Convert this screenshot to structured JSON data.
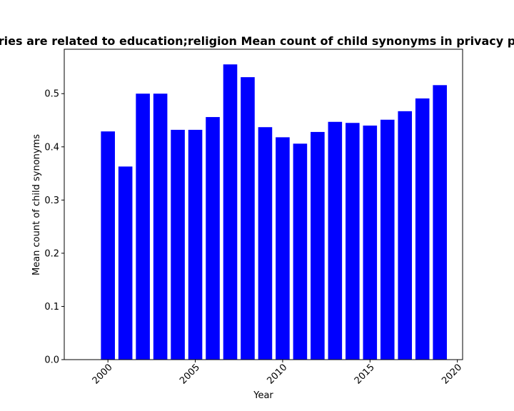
{
  "chart_data": {
    "type": "bar",
    "title": "ries are related to education;religion Mean count of child synonyms in privacy p",
    "xlabel": "Year",
    "ylabel": "Mean count of child synonyms",
    "x": [
      2000,
      2001,
      2002,
      2003,
      2004,
      2005,
      2006,
      2007,
      2008,
      2009,
      2010,
      2011,
      2012,
      2013,
      2014,
      2015,
      2016,
      2017,
      2018,
      2019
    ],
    "values": [
      0.429,
      0.363,
      0.5,
      0.5,
      0.432,
      0.432,
      0.456,
      0.555,
      0.531,
      0.437,
      0.418,
      0.406,
      0.428,
      0.447,
      0.445,
      0.44,
      0.451,
      0.467,
      0.491,
      0.516
    ],
    "xlim": [
      1997.5,
      2020.3
    ],
    "ylim": [
      0,
      0.5835
    ],
    "xticks": [
      2000,
      2005,
      2010,
      2015,
      2020
    ],
    "yticks": [
      0.0,
      0.1,
      0.2,
      0.3,
      0.4,
      0.5
    ],
    "ytick_labels": [
      "0.0",
      "0.1",
      "0.2",
      "0.3",
      "0.4",
      "0.5"
    ],
    "bar_color": "#0000ff",
    "grid": false,
    "legend": "none"
  }
}
